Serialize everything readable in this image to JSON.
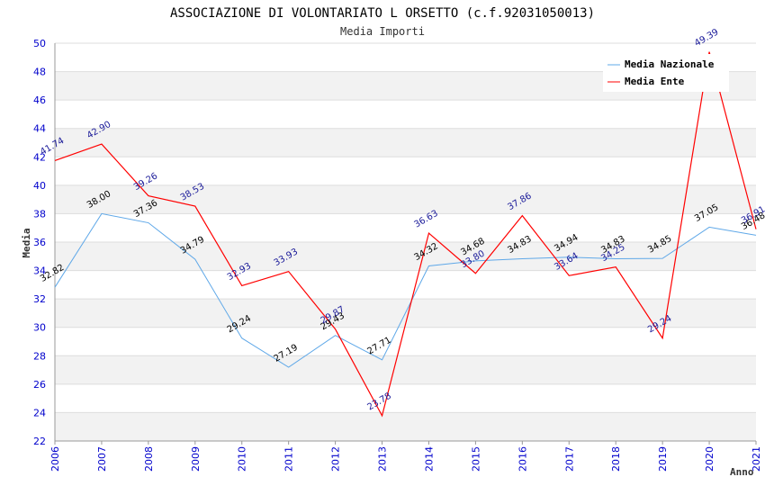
{
  "chart_data": {
    "type": "line",
    "title": "ASSOCIAZIONE DI VOLONTARIATO L ORSETTO (c.f.92031050013)",
    "subtitle": "Media Importi",
    "xlabel": "Anno",
    "ylabel": "Media",
    "ylim": [
      22,
      50
    ],
    "yticks": [
      "22",
      "24",
      "26",
      "28",
      "30",
      "32",
      "34",
      "36",
      "38",
      "40",
      "42",
      "44",
      "46",
      "48",
      "50"
    ],
    "categories": [
      "2006",
      "2007",
      "2008",
      "2009",
      "2010",
      "2011",
      "2012",
      "2013",
      "2014",
      "2015",
      "2016",
      "2017",
      "2018",
      "2019",
      "2020",
      "2021"
    ],
    "grid": "horizontal alternating bands",
    "legend_position": "top-right",
    "series": [
      {
        "name": "Media Nazionale",
        "color": "#5fa8e8",
        "values": [
          32.82,
          38.0,
          37.36,
          34.79,
          29.24,
          27.19,
          29.43,
          27.71,
          34.32,
          34.68,
          34.83,
          34.94,
          34.83,
          34.85,
          37.05,
          36.48
        ],
        "labels": [
          "32.82",
          "38.00",
          "37.36",
          "34.79",
          "29.24",
          "27.19",
          "29.43",
          "27.71",
          "34.32",
          "34.68",
          "34.83",
          "34.94",
          "34.83",
          "34.85",
          "37.05",
          "36.48"
        ]
      },
      {
        "name": "Media Ente",
        "color": "#ff0000",
        "values": [
          41.74,
          42.9,
          39.26,
          38.53,
          32.93,
          33.93,
          29.87,
          23.78,
          36.63,
          33.8,
          37.86,
          33.64,
          34.25,
          29.24,
          49.39,
          36.91
        ],
        "labels": [
          "41.74",
          "42.90",
          "39.26",
          "38.53",
          "32.93",
          "33.93",
          "29.87",
          "23.78",
          "36.63",
          "33.80",
          "37.86",
          "33.64",
          "34.25",
          "29.24",
          "49.39",
          "36.91"
        ]
      }
    ]
  }
}
